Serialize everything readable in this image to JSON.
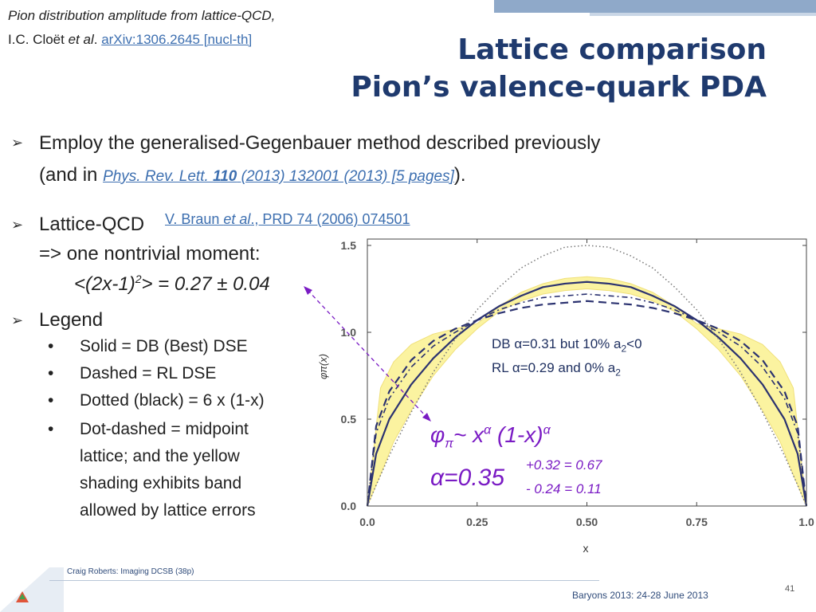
{
  "header": {
    "ref_line1": "Pion distribution amplitude from lattice-QCD,",
    "ref_author": "I.C. Cloët ",
    "ref_etal": "et al",
    "ref_dot": ". ",
    "ref_link": "arXiv:1306.2645 [nucl-th]",
    "title_line1": "Lattice comparison",
    "title_line2": "Pion’s valence-quark PDA"
  },
  "bullets": {
    "b1_line1": "Employ the generalised-Gegenbauer method described previously",
    "b1_line2_prefix": "(and in ",
    "b1_link_journal": "Phys. Rev. Lett. ",
    "b1_link_vol": "110",
    "b1_link_rest": " (2013) 132001 (2013) [5 pages]",
    "b1_line2_suffix": ").",
    "b2_label": "Lattice-QCD",
    "b2_link_prefix": "V. Braun ",
    "b2_link_etal": "et al",
    "b2_link_rest": "., PRD 74 (2006) 074501",
    "b2_line2": "=> one nontrivial moment:",
    "b2_moment_a": "<(2x-1)",
    "b2_moment_sup": "2",
    "b2_moment_b": "> = 0.27 ± 0.04",
    "b3_label": "Legend",
    "legend_items": [
      "Solid = DB (Best) DSE",
      "Dashed = RL DSE",
      "Dotted (black) = 6 x (1-x)",
      "Dot-dashed = midpoint",
      "lattice; and the yellow",
      "shading exhibits band",
      "allowed by lattice errors"
    ],
    "bullet_dot": "•",
    "arrow_glyph": "➢"
  },
  "annotations": {
    "db_text_a": "DB α=0.31 but 10% a",
    "db_sub": "2",
    "db_text_b": "<0",
    "rl_text_a": "RL  α=0.29 and 0% a",
    "rl_sub": "2",
    "formula_phi": "φ",
    "formula_pi": "π",
    "formula_mid": "~ x",
    "formula_alpha_sup1": "α",
    "formula_rest": " (1-x)",
    "formula_alpha_sup2": "α",
    "alpha_main": "α=0.35",
    "alpha_plus": "+0.32 = 0.67",
    "alpha_minus": "- 0.24 = 0.11"
  },
  "footer": {
    "left": "Craig Roberts: Imaging DCSB (38p)",
    "right": "Baryons 2013: 24-28 June 2013",
    "page": "41"
  },
  "colors": {
    "title": "#1f3a6e",
    "link": "#3d6fb0",
    "curve": "#2b3270",
    "band": "#fbf3a0",
    "formula": "#7a1bc4"
  },
  "chart_data": {
    "type": "line",
    "xlabel": "x",
    "ylabel": "φπ(x)",
    "xlim": [
      0,
      1
    ],
    "ylim": [
      0,
      1.5
    ],
    "xticks": [
      "0.0",
      "0.25",
      "0.50",
      "0.75",
      "1.0"
    ],
    "yticks": [
      "0.0",
      "0.5",
      "1.0",
      "1.5"
    ],
    "grid": false,
    "band": {
      "x": [
        0.0,
        0.03,
        0.06,
        0.1,
        0.15,
        0.2,
        0.25,
        0.3,
        0.35,
        0.4,
        0.45,
        0.5
      ],
      "lower": [
        0.0,
        0.18,
        0.37,
        0.55,
        0.75,
        0.9,
        1.02,
        1.12,
        1.18,
        1.22,
        1.24,
        1.25
      ],
      "upper": [
        0.0,
        0.68,
        0.83,
        0.93,
        0.99,
        1.02,
        1.05,
        1.15,
        1.23,
        1.28,
        1.31,
        1.32
      ]
    },
    "series": [
      {
        "style": "solid",
        "x": [
          0.0,
          0.02,
          0.05,
          0.1,
          0.15,
          0.2,
          0.25,
          0.3,
          0.35,
          0.4,
          0.45,
          0.5
        ],
        "y": [
          0.0,
          0.3,
          0.5,
          0.7,
          0.85,
          0.97,
          1.07,
          1.15,
          1.21,
          1.26,
          1.28,
          1.29
        ]
      },
      {
        "style": "dashed",
        "x": [
          0.0,
          0.02,
          0.05,
          0.1,
          0.15,
          0.2,
          0.25,
          0.3,
          0.35,
          0.4,
          0.45,
          0.5
        ],
        "y": [
          0.0,
          0.46,
          0.66,
          0.84,
          0.95,
          1.02,
          1.07,
          1.11,
          1.14,
          1.16,
          1.17,
          1.18
        ]
      },
      {
        "style": "dotted",
        "x": [
          0.0,
          0.02,
          0.05,
          0.1,
          0.15,
          0.2,
          0.25,
          0.3,
          0.35,
          0.4,
          0.45,
          0.5
        ],
        "y": [
          0.0,
          0.12,
          0.29,
          0.54,
          0.77,
          0.96,
          1.13,
          1.26,
          1.37,
          1.44,
          1.49,
          1.5
        ]
      },
      {
        "style": "dot-dashed",
        "x": [
          0.0,
          0.02,
          0.05,
          0.1,
          0.15,
          0.2,
          0.25,
          0.3,
          0.35,
          0.4,
          0.45,
          0.5
        ],
        "y": [
          0.0,
          0.42,
          0.62,
          0.8,
          0.92,
          1.0,
          1.07,
          1.13,
          1.17,
          1.2,
          1.21,
          1.22
        ]
      }
    ]
  }
}
